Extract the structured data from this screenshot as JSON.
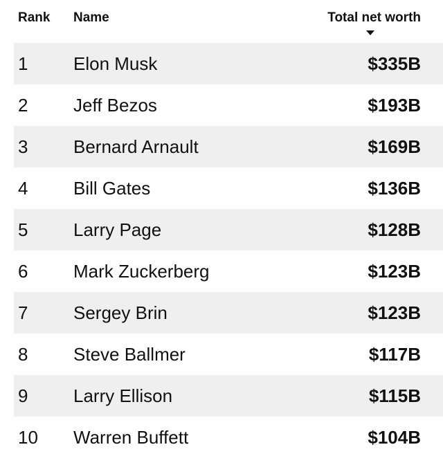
{
  "header": {
    "rank_label": "Rank",
    "name_label": "Name",
    "worth_label": "Total net worth",
    "sort_direction": "descending"
  },
  "rows": [
    {
      "rank": "1",
      "name": "Elon Musk",
      "worth": "$335B"
    },
    {
      "rank": "2",
      "name": "Jeff Bezos",
      "worth": "$193B"
    },
    {
      "rank": "3",
      "name": "Bernard Arnault",
      "worth": "$169B"
    },
    {
      "rank": "4",
      "name": "Bill Gates",
      "worth": "$136B"
    },
    {
      "rank": "5",
      "name": "Larry Page",
      "worth": "$128B"
    },
    {
      "rank": "6",
      "name": "Mark Zuckerberg",
      "worth": "$123B"
    },
    {
      "rank": "7",
      "name": "Sergey Brin",
      "worth": "$123B"
    },
    {
      "rank": "8",
      "name": "Steve Ballmer",
      "worth": "$117B"
    },
    {
      "rank": "9",
      "name": "Larry Ellison",
      "worth": "$115B"
    },
    {
      "rank": "10",
      "name": "Warren Buffett",
      "worth": "$104B"
    }
  ],
  "colors": {
    "row_shade": "#efefef",
    "text": "#111111",
    "background": "#ffffff"
  }
}
